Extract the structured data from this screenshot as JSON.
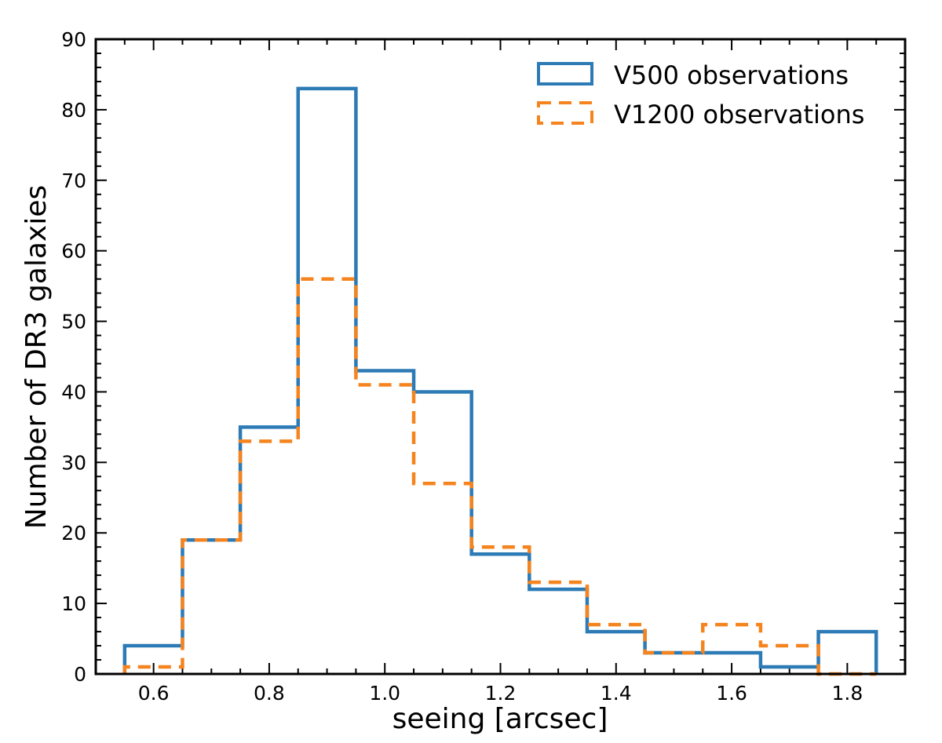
{
  "chart_data": {
    "type": "histogram",
    "xlabel": "seeing [arcsec]",
    "ylabel": "Number of DR3 galaxies",
    "xlim": [
      0.5,
      1.9
    ],
    "ylim": [
      0,
      90
    ],
    "xticks": [
      "0.6",
      "0.8",
      "1.0",
      "1.2",
      "1.4",
      "1.6",
      "1.8"
    ],
    "xtick_values": [
      0.6,
      0.8,
      1.0,
      1.2,
      1.4,
      1.6,
      1.8
    ],
    "yticks": [
      "0",
      "10",
      "20",
      "30",
      "40",
      "50",
      "60",
      "70",
      "80",
      "90"
    ],
    "ytick_values": [
      0,
      10,
      20,
      30,
      40,
      50,
      60,
      70,
      80,
      90
    ],
    "bin_edges": [
      0.55,
      0.65,
      0.75,
      0.85,
      0.95,
      1.05,
      1.15,
      1.25,
      1.35,
      1.45,
      1.55,
      1.65,
      1.75,
      1.85
    ],
    "series": [
      {
        "name": "V500 observations",
        "style": "solid",
        "color": "#2d7bb6",
        "values": [
          4,
          19,
          35,
          83,
          43,
          40,
          17,
          12,
          6,
          3,
          3,
          1,
          6
        ]
      },
      {
        "name": "V1200 observations",
        "style": "dashed",
        "color": "#f5841f",
        "values": [
          1,
          19,
          33,
          56,
          41,
          27,
          18,
          13,
          7,
          3,
          7,
          4,
          0
        ]
      }
    ],
    "legend_location": "top-right",
    "grid": false
  }
}
